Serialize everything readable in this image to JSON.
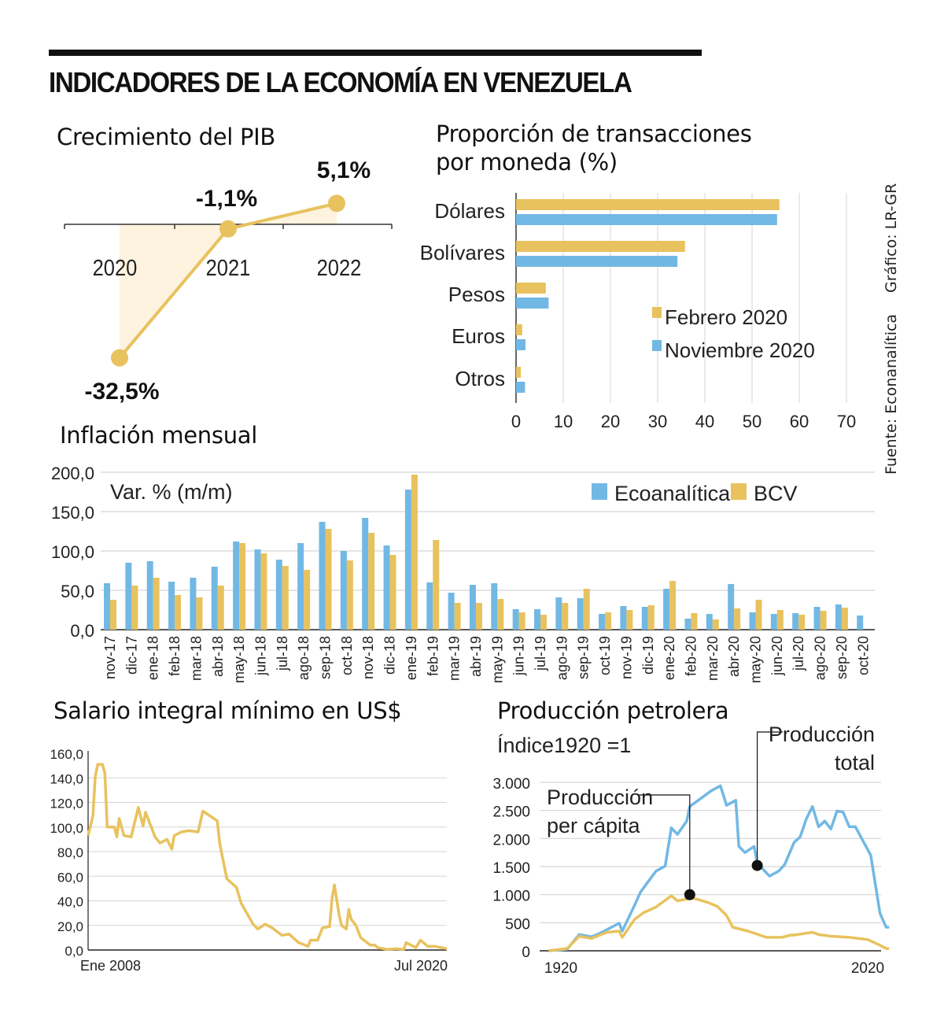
{
  "header": {
    "title": "INDICADORES DE LA ECONOMÍA EN VENEZUELA"
  },
  "credits": {
    "graphic": "Gráfico: LR-GR",
    "source": "Fuente: Econanalítica"
  },
  "colors": {
    "yellow": "#E8C25E",
    "yellow_fill": "#FDF3DE",
    "blue": "#72B8E4",
    "grid": "#D5D5D5",
    "text": "#1a1a1a"
  },
  "chart_data": [
    {
      "id": "pib",
      "type": "line",
      "title": "Crecimiento del PIB",
      "categories": [
        "2020",
        "2021",
        "2022"
      ],
      "values": [
        -32.5,
        -1.1,
        5.1
      ],
      "data_labels": [
        "-32,5%",
        "-1,1%",
        "5,1%"
      ],
      "xlabel": "",
      "ylabel": "",
      "grid": false,
      "area_fill": true
    },
    {
      "id": "moneda",
      "type": "bar",
      "orientation": "horizontal",
      "title": "Proporción de transacciones por moneda (%)",
      "categories": [
        "Dólares",
        "Bolívares",
        "Pesos",
        "Euros",
        "Otros"
      ],
      "series": [
        {
          "name": "Febrero 2020",
          "color": "#E8C25E",
          "values": [
            55.8,
            35.8,
            6.3,
            1.3,
            1.0
          ]
        },
        {
          "name": "Noviembre 2020",
          "color": "#72B8E4",
          "values": [
            55.3,
            34.2,
            6.9,
            2.0,
            1.9
          ]
        }
      ],
      "xlim": [
        0,
        70
      ],
      "xticks": [
        "0",
        "10",
        "20",
        "30",
        "40",
        "50",
        "60",
        "70"
      ],
      "grid": true,
      "legend_position": "bottom-right"
    },
    {
      "id": "inflacion",
      "type": "bar",
      "title": "Inflación mensual",
      "subtitle": "Var. % (m/m)",
      "categories": [
        "nov-17",
        "dic-17",
        "ene-18",
        "feb-18",
        "mar-18",
        "abr-18",
        "may-18",
        "jun-18",
        "jul-18",
        "ago-18",
        "sep-18",
        "oct-18",
        "nov-18",
        "dic-18",
        "ene-19",
        "feb-19",
        "mar-19",
        "abr-19",
        "may-19",
        "jun-19",
        "jul-19",
        "ago-19",
        "sep-19",
        "oct-19",
        "nov-19",
        "dic-19",
        "ene-20",
        "feb-20",
        "mar-20",
        "abr-20",
        "may-20",
        "jun-20",
        "jul-20",
        "ago-20",
        "sep-20",
        "oct-20"
      ],
      "series": [
        {
          "name": "Ecoanalítica",
          "color": "#72B8E4",
          "values": [
            59,
            85,
            87,
            61,
            66,
            80,
            112,
            102,
            89,
            110,
            137,
            100,
            142,
            107,
            178,
            60,
            47,
            57,
            59,
            26,
            26,
            41,
            40,
            20,
            30,
            29,
            52,
            14,
            20,
            58,
            22,
            20,
            21,
            29,
            32,
            18
          ]
        },
        {
          "name": "BCV",
          "color": "#E8C25E",
          "values": [
            38,
            56,
            66,
            44,
            41,
            56,
            110,
            97,
            81,
            76,
            128,
            88,
            123,
            95,
            197,
            114,
            34,
            34,
            39,
            22,
            19,
            34,
            52,
            22,
            25,
            31,
            62,
            21,
            13,
            27,
            38,
            25,
            19,
            24,
            28,
            null
          ]
        }
      ],
      "ylim": [
        0,
        200
      ],
      "yticks": [
        "0,0",
        "50,0",
        "100,0",
        "150,0",
        "200,0"
      ],
      "grid": true,
      "legend_position": "top-right"
    },
    {
      "id": "salario",
      "type": "line",
      "title": "Salario integral mínimo en US$",
      "x_start_label": "Ene 2008",
      "x_end_label": "Jul 2020",
      "x_unit": "months since Jan 2008",
      "x": [
        0,
        2,
        3,
        4,
        6,
        7,
        8,
        11,
        12,
        13,
        15,
        18,
        21,
        23,
        24,
        28,
        30,
        33,
        35,
        36,
        39,
        42,
        46,
        48,
        51,
        54,
        55,
        58,
        62,
        64,
        69,
        71,
        74,
        77,
        81,
        84,
        88,
        92,
        93,
        96,
        98,
        101,
        102,
        103,
        105,
        106,
        108,
        109,
        110,
        112,
        114,
        118,
        120,
        121,
        125,
        129,
        132,
        133,
        137,
        139,
        142,
        145,
        150
      ],
      "values": [
        93,
        109,
        141,
        151,
        151,
        144,
        100,
        100,
        92,
        107,
        93,
        92,
        116,
        101,
        112,
        92,
        87,
        90,
        82,
        93,
        96,
        97,
        96,
        113,
        109,
        105,
        87,
        58,
        51,
        38,
        21,
        17,
        21,
        18,
        12,
        13,
        6,
        3,
        8,
        8,
        18,
        19,
        42,
        53,
        28,
        20,
        17,
        33,
        25,
        20,
        10,
        4,
        4,
        2,
        0.5,
        1,
        0.5,
        6,
        2,
        8,
        3,
        3,
        1
      ],
      "ylim": [
        0,
        160
      ],
      "yticks": [
        "0,0",
        "20,0",
        "40,0",
        "60,0",
        "80,0",
        "100,0",
        "120,0",
        "140,0",
        "160,0"
      ],
      "grid": true
    },
    {
      "id": "petroleo",
      "type": "line",
      "title": "Producción petrolera",
      "subtitle": "Índice1920 =1",
      "x_start_label": "1920",
      "x_end_label": "2020",
      "series": [
        {
          "name": "Producción total",
          "color": "#72B8E4",
          "x": [
            1916,
            1922,
            1926,
            1930,
            1933,
            1937,
            1939,
            1940,
            1944,
            1946,
            1951,
            1954,
            1956,
            1958,
            1961,
            1962,
            1966,
            1969,
            1972,
            1974,
            1977,
            1978,
            1980,
            1983,
            1984,
            1988,
            1991,
            1993,
            1996,
            1998,
            2000,
            2002,
            2004,
            2006,
            2008,
            2010,
            2012,
            2014,
            2016,
            2021,
            2024,
            2026,
            2027
          ],
          "values": [
            0,
            28,
            290,
            250,
            320,
            435,
            490,
            350,
            810,
            1050,
            1420,
            1510,
            2190,
            2075,
            2310,
            2570,
            2730,
            2850,
            2940,
            2590,
            2680,
            1860,
            1750,
            1860,
            1560,
            1330,
            1420,
            1540,
            1930,
            2030,
            2350,
            2570,
            2210,
            2310,
            2170,
            2490,
            2470,
            2210,
            2210,
            1700,
            670,
            420,
            420
          ]
        },
        {
          "name": "Producción per cápita",
          "color": "#E8C25E",
          "x": [
            1916,
            1922,
            1926,
            1930,
            1935,
            1939,
            1940,
            1944,
            1947,
            1951,
            1956,
            1958,
            1963,
            1968,
            1971,
            1974,
            1976,
            1981,
            1987,
            1992,
            1995,
            1996,
            2002,
            2004,
            2008,
            2014,
            2020,
            2024,
            2026,
            2027
          ],
          "values": [
            0,
            40,
            260,
            220,
            330,
            350,
            240,
            560,
            680,
            780,
            980,
            890,
            940,
            860,
            790,
            630,
            420,
            350,
            240,
            240,
            280,
            280,
            330,
            290,
            260,
            240,
            200,
            100,
            40,
            40
          ]
        }
      ],
      "annotations": [
        {
          "label": "Producción per cápita",
          "series": "Producción per cápita",
          "x": 1962,
          "value": 1000
        },
        {
          "label": "Producción total",
          "series": "Producción total",
          "x": 1984,
          "value": 1520
        }
      ],
      "ylim": [
        0,
        3000
      ],
      "yticks": [
        "0",
        "500",
        "1.000",
        "1.500",
        "2.000",
        "2.500",
        "3.000"
      ],
      "grid": true
    }
  ]
}
